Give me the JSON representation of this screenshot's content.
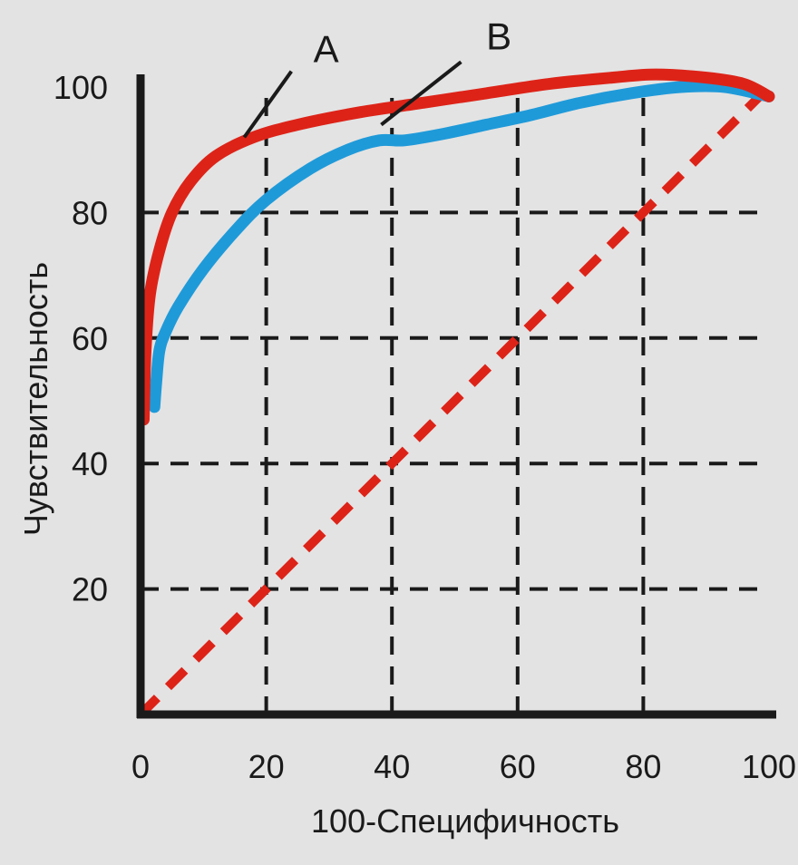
{
  "chart_data": {
    "type": "line",
    "title": "",
    "xlabel": "100-Специфичность",
    "ylabel": "Чувствительность",
    "xlim": [
      0,
      100
    ],
    "ylim": [
      0,
      100
    ],
    "x_ticks": [
      "0",
      "20",
      "40",
      "60",
      "80",
      "100"
    ],
    "y_ticks": [
      "20",
      "40",
      "60",
      "80",
      "100"
    ],
    "grid": true,
    "series": [
      {
        "name": "A",
        "color": "#dd2318",
        "style": "solid",
        "x": [
          0.5,
          0.8,
          1.5,
          3,
          5,
          8,
          12,
          18,
          25,
          35,
          45,
          55,
          65,
          75,
          82,
          90,
          96,
          100
        ],
        "y": [
          47,
          58,
          67,
          74,
          80,
          85,
          89,
          92,
          94,
          96,
          97.5,
          99,
          100.5,
          101.5,
          102,
          101.5,
          100.5,
          98.5
        ]
      },
      {
        "name": "B",
        "color": "#1f9ad9",
        "style": "solid",
        "x": [
          2.2,
          2.5,
          3,
          4,
          6,
          10,
          15,
          20,
          27,
          33,
          38,
          42,
          48,
          55,
          62,
          70,
          78,
          86,
          93,
          100
        ],
        "y": [
          49,
          53,
          58,
          61,
          65,
          71,
          77,
          82,
          87,
          90,
          91.5,
          91.5,
          92.5,
          94,
          95.5,
          97.5,
          99,
          100,
          100,
          98.5
        ]
      },
      {
        "name": "",
        "color": "#dd2318",
        "style": "dashed",
        "x": [
          0,
          100
        ],
        "y": [
          0,
          100
        ]
      }
    ],
    "annotations": [
      {
        "text": "A",
        "series": "A"
      },
      {
        "text": "B",
        "series": "B"
      }
    ]
  }
}
